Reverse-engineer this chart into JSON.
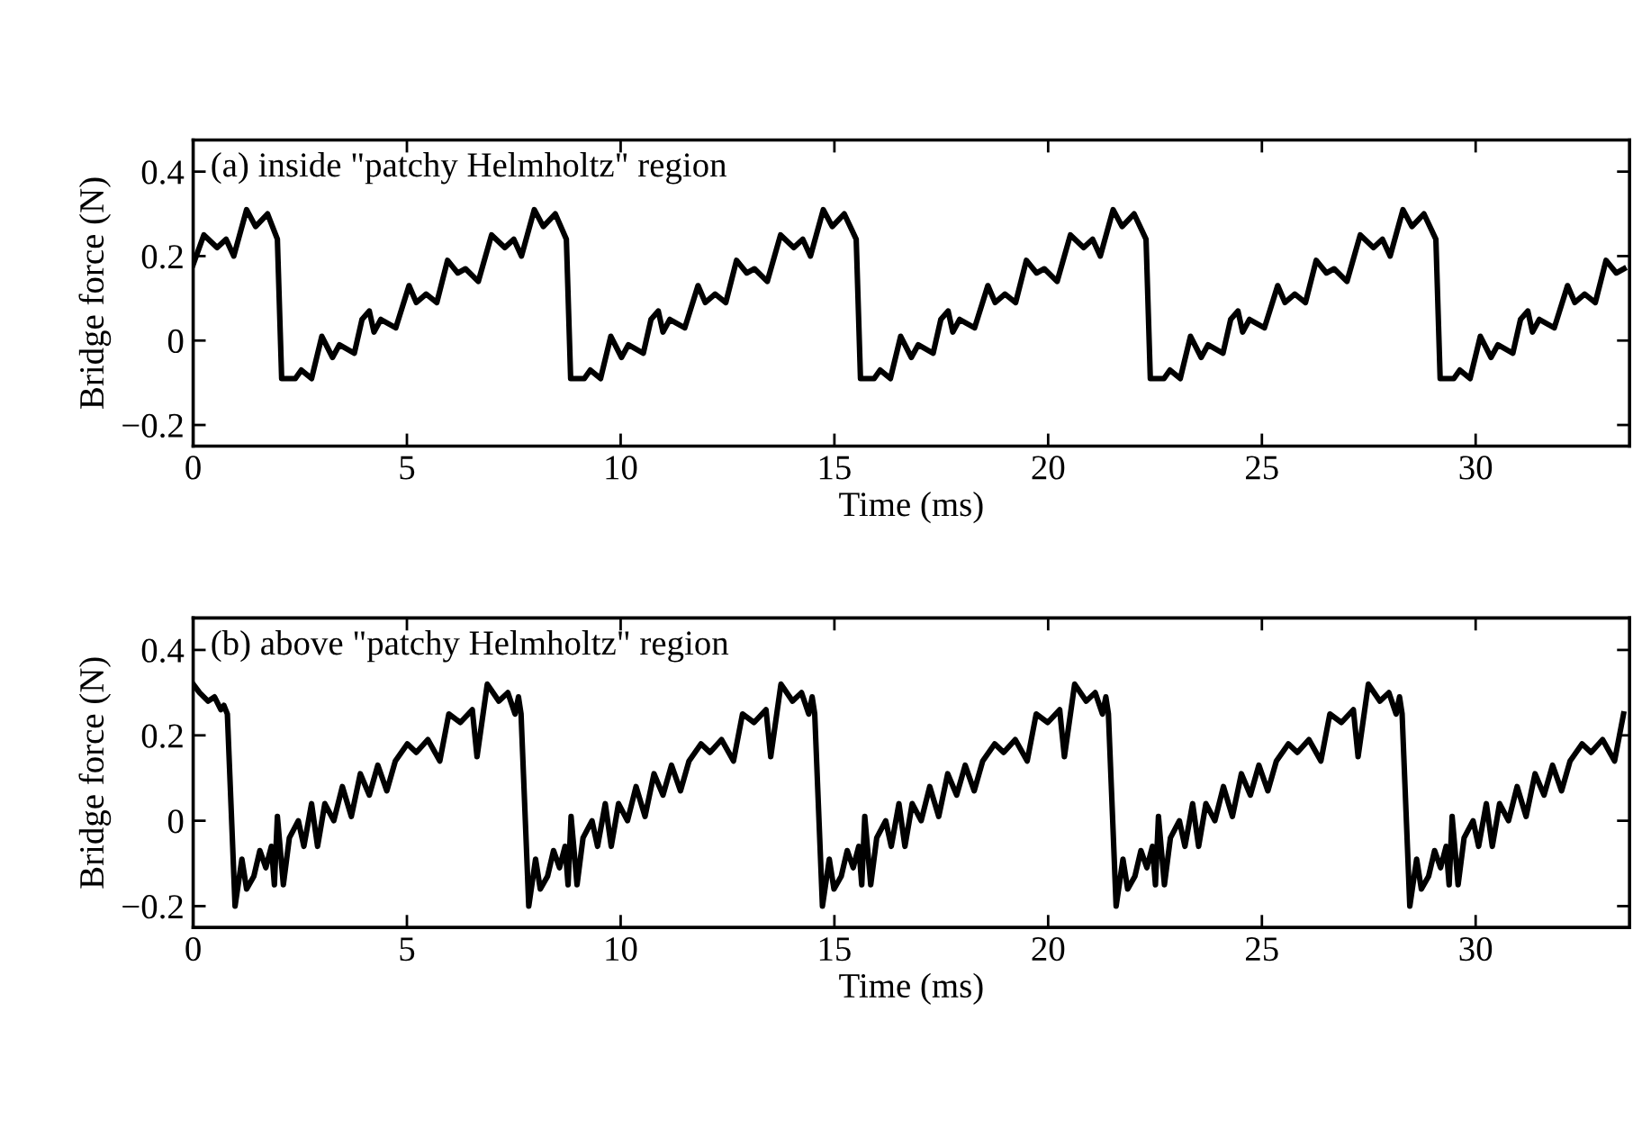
{
  "chart_data": [
    {
      "type": "line",
      "title": "(a) inside \"patchy Helmholtz\" region",
      "xlabel": "Time (ms)",
      "ylabel": "Bridge force (N)",
      "xlim": [
        0,
        33.6
      ],
      "ylim": [
        -0.25,
        0.475
      ],
      "xticks": [
        0,
        5,
        10,
        15,
        20,
        25,
        30
      ],
      "yticks": [
        {
          "value": -0.2,
          "label": "−0.2"
        },
        0,
        0.2,
        0.4
      ],
      "grid": false,
      "legend": false,
      "series": [
        {
          "color": "#000000",
          "x": [
            0,
            0.25,
            0.56,
            0.77,
            0.95,
            1.25,
            1.46,
            1.74,
            1.97,
            2.07,
            2.39,
            2.53,
            2.77,
            3.01,
            3.26,
            3.42,
            3.77,
            3.95,
            4.12,
            4.23,
            4.39,
            4.74,
            5.05,
            5.22,
            5.45,
            5.7,
            5.95,
            6.19,
            6.37,
            6.67,
            6.98,
            7.29,
            7.5,
            7.68,
            7.98,
            8.19,
            8.47,
            8.73,
            8.83,
            9.15,
            9.29,
            9.53,
            9.77,
            10.02,
            10.18,
            10.53,
            10.71,
            10.88,
            10.99,
            11.15,
            11.5,
            11.81,
            11.98,
            12.21,
            12.46,
            12.71,
            12.95,
            13.13,
            13.43,
            13.74,
            14.05,
            14.26,
            14.44,
            14.74,
            14.95,
            15.23,
            15.51,
            15.61,
            15.93,
            16.07,
            16.31,
            16.55,
            16.8,
            16.96,
            17.31,
            17.49,
            17.66,
            17.77,
            17.93,
            18.28,
            18.59,
            18.76,
            18.99,
            19.24,
            19.49,
            19.73,
            19.91,
            20.21,
            20.52,
            20.83,
            21.04,
            21.22,
            21.52,
            21.73,
            22.01,
            22.29,
            22.39,
            22.71,
            22.85,
            23.09,
            23.33,
            23.58,
            23.74,
            24.09,
            24.27,
            24.44,
            24.55,
            24.71,
            25.06,
            25.37,
            25.54,
            25.77,
            26.02,
            26.27,
            26.51,
            26.69,
            26.99,
            27.3,
            27.61,
            27.82,
            28.0,
            28.3,
            28.51,
            28.79,
            29.07,
            29.17,
            29.49,
            29.63,
            29.87,
            30.11,
            30.36,
            30.52,
            30.87,
            31.05,
            31.22,
            31.33,
            31.49,
            31.84,
            32.15,
            32.32,
            32.55,
            32.8,
            33.05,
            33.29,
            33.47
          ],
          "values": [
            0.18,
            0.25,
            0.22,
            0.24,
            0.2,
            0.31,
            0.27,
            0.3,
            0.24,
            -0.09,
            -0.09,
            -0.07,
            -0.09,
            0.01,
            -0.04,
            -0.01,
            -0.03,
            0.05,
            0.07,
            0.02,
            0.05,
            0.03,
            0.13,
            0.09,
            0.11,
            0.09,
            0.19,
            0.16,
            0.17,
            0.14,
            0.25,
            0.22,
            0.24,
            0.2,
            0.31,
            0.27,
            0.3,
            0.24,
            -0.09,
            -0.09,
            -0.07,
            -0.09,
            0.01,
            -0.04,
            -0.01,
            -0.03,
            0.05,
            0.07,
            0.02,
            0.05,
            0.03,
            0.13,
            0.09,
            0.11,
            0.09,
            0.19,
            0.16,
            0.17,
            0.14,
            0.25,
            0.22,
            0.24,
            0.2,
            0.31,
            0.27,
            0.3,
            0.24,
            -0.09,
            -0.09,
            -0.07,
            -0.09,
            0.01,
            -0.04,
            -0.01,
            -0.03,
            0.05,
            0.07,
            0.02,
            0.05,
            0.03,
            0.13,
            0.09,
            0.11,
            0.09,
            0.19,
            0.16,
            0.17,
            0.14,
            0.25,
            0.22,
            0.24,
            0.2,
            0.31,
            0.27,
            0.3,
            0.24,
            -0.09,
            -0.09,
            -0.07,
            -0.09,
            0.01,
            -0.04,
            -0.01,
            -0.03,
            0.05,
            0.07,
            0.02,
            0.05,
            0.03,
            0.13,
            0.09,
            0.11,
            0.09,
            0.19,
            0.16,
            0.17,
            0.14,
            0.25,
            0.22,
            0.24,
            0.2,
            0.31,
            0.27,
            0.3,
            0.24,
            -0.09,
            -0.09,
            -0.07,
            -0.09,
            0.01,
            -0.04,
            -0.01,
            -0.03,
            0.05,
            0.07,
            0.02,
            0.05,
            0.03,
            0.13,
            0.09,
            0.11,
            0.09,
            0.19,
            0.16,
            0.17
          ]
        }
      ]
    },
    {
      "type": "line",
      "title": "(b) above \"patchy Helmholtz\" region",
      "xlabel": "Time (ms)",
      "ylabel": "Bridge force (N)",
      "xlim": [
        0,
        33.6
      ],
      "ylim": [
        -0.25,
        0.475
      ],
      "xticks": [
        0,
        5,
        10,
        15,
        20,
        25,
        30
      ],
      "yticks": [
        {
          "value": -0.2,
          "label": "−0.2"
        },
        0,
        0.2,
        0.4
      ],
      "grid": false,
      "legend": false,
      "series": [
        {
          "color": "#000000",
          "x": [
            0,
            0.15,
            0.35,
            0.5,
            0.65,
            0.72,
            0.8,
            0.98,
            1.14,
            1.25,
            1.42,
            1.56,
            1.7,
            1.83,
            1.9,
            1.97,
            2.11,
            2.25,
            2.46,
            2.59,
            2.77,
            2.91,
            3.08,
            3.29,
            3.49,
            3.7,
            3.91,
            4.12,
            4.32,
            4.53,
            4.73,
            5.01,
            5.22,
            5.49,
            5.77,
            5.98,
            6.25,
            6.53,
            6.64,
            6.88,
            7.15,
            7.36,
            7.53,
            7.61,
            7.67,
            7.85,
            8.01,
            8.12,
            8.29,
            8.43,
            8.57,
            8.7,
            8.77,
            8.84,
            8.98,
            9.12,
            9.33,
            9.46,
            9.64,
            9.78,
            9.95,
            10.16,
            10.36,
            10.57,
            10.78,
            10.99,
            11.19,
            11.4,
            11.6,
            11.88,
            12.09,
            12.36,
            12.64,
            12.85,
            13.12,
            13.4,
            13.51,
            13.75,
            14.02,
            14.23,
            14.4,
            14.48,
            14.54,
            14.72,
            14.88,
            14.99,
            15.16,
            15.3,
            15.44,
            15.57,
            15.64,
            15.71,
            15.85,
            15.99,
            16.2,
            16.33,
            16.51,
            16.65,
            16.82,
            17.03,
            17.23,
            17.44,
            17.65,
            17.86,
            18.06,
            18.27,
            18.47,
            18.75,
            18.96,
            19.23,
            19.51,
            19.72,
            19.99,
            20.27,
            20.38,
            20.62,
            20.89,
            21.1,
            21.27,
            21.35,
            21.41,
            21.59,
            21.75,
            21.86,
            22.03,
            22.17,
            22.31,
            22.44,
            22.51,
            22.58,
            22.72,
            22.86,
            23.07,
            23.2,
            23.38,
            23.52,
            23.69,
            23.9,
            24.1,
            24.31,
            24.52,
            24.73,
            24.93,
            25.14,
            25.34,
            25.62,
            25.83,
            26.1,
            26.38,
            26.59,
            26.86,
            27.14,
            27.25,
            27.49,
            27.76,
            27.97,
            28.14,
            28.22,
            28.28,
            28.46,
            28.62,
            28.73,
            28.9,
            29.04,
            29.18,
            29.31,
            29.38,
            29.45,
            29.59,
            29.73,
            29.94,
            30.07,
            30.25,
            30.39,
            30.56,
            30.77,
            30.97,
            31.18,
            31.39,
            31.6,
            31.8,
            32.01,
            32.21,
            32.49,
            32.7,
            32.97,
            33.25,
            33.46
          ],
          "values": [
            0.32,
            0.3,
            0.28,
            0.29,
            0.26,
            0.27,
            0.25,
            -0.2,
            -0.09,
            -0.16,
            -0.13,
            -0.07,
            -0.11,
            -0.06,
            -0.15,
            0.01,
            -0.15,
            -0.04,
            0,
            -0.06,
            0.04,
            -0.06,
            0.04,
            0,
            0.08,
            0.01,
            0.11,
            0.06,
            0.13,
            0.07,
            0.14,
            0.18,
            0.16,
            0.19,
            0.14,
            0.25,
            0.23,
            0.26,
            0.15,
            0.32,
            0.28,
            0.3,
            0.25,
            0.29,
            0.25,
            -0.2,
            -0.09,
            -0.16,
            -0.13,
            -0.07,
            -0.11,
            -0.06,
            -0.15,
            0.01,
            -0.15,
            -0.04,
            0,
            -0.06,
            0.04,
            -0.06,
            0.04,
            0,
            0.08,
            0.01,
            0.11,
            0.06,
            0.13,
            0.07,
            0.14,
            0.18,
            0.16,
            0.19,
            0.14,
            0.25,
            0.23,
            0.26,
            0.15,
            0.32,
            0.28,
            0.3,
            0.25,
            0.29,
            0.25,
            -0.2,
            -0.09,
            -0.16,
            -0.13,
            -0.07,
            -0.11,
            -0.06,
            -0.15,
            0.01,
            -0.15,
            -0.04,
            0,
            -0.06,
            0.04,
            -0.06,
            0.04,
            0,
            0.08,
            0.01,
            0.11,
            0.06,
            0.13,
            0.07,
            0.14,
            0.18,
            0.16,
            0.19,
            0.14,
            0.25,
            0.23,
            0.26,
            0.15,
            0.32,
            0.28,
            0.3,
            0.25,
            0.29,
            0.25,
            -0.2,
            -0.09,
            -0.16,
            -0.13,
            -0.07,
            -0.11,
            -0.06,
            -0.15,
            0.01,
            -0.15,
            -0.04,
            0,
            -0.06,
            0.04,
            -0.06,
            0.04,
            0,
            0.08,
            0.01,
            0.11,
            0.06,
            0.13,
            0.07,
            0.14,
            0.18,
            0.16,
            0.19,
            0.14,
            0.25,
            0.23,
            0.26,
            0.15,
            0.32,
            0.28,
            0.3,
            0.25,
            0.29,
            0.25,
            -0.2,
            -0.09,
            -0.16,
            -0.13,
            -0.07,
            -0.11,
            -0.06,
            -0.15,
            0.01,
            -0.15,
            -0.04,
            0,
            -0.06,
            0.04,
            -0.06,
            0.04,
            0,
            0.08,
            0.01,
            0.11,
            0.06,
            0.13,
            0.07,
            0.14,
            0.18,
            0.16,
            0.19,
            0.14,
            0.25
          ]
        }
      ]
    }
  ]
}
